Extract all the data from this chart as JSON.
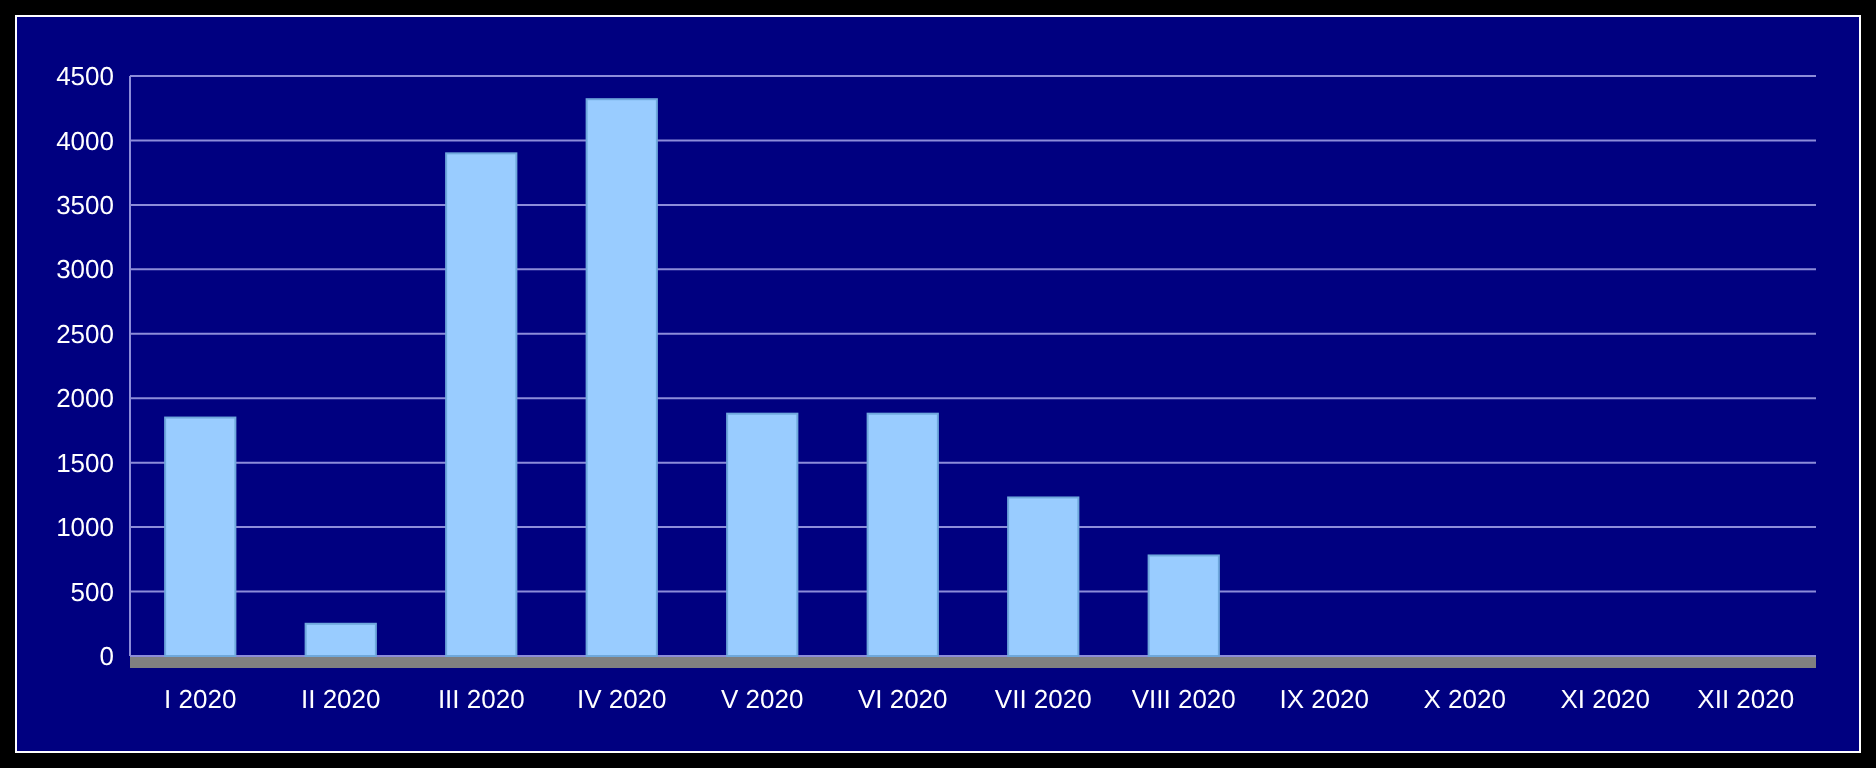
{
  "chart_data": {
    "type": "bar",
    "categories": [
      "I 2020",
      "II 2020",
      "III 2020",
      "IV 2020",
      "V 2020",
      "VI 2020",
      "VII 2020",
      "VIII 2020",
      "IX 2020",
      "X 2020",
      "XI 2020",
      "XII 2020"
    ],
    "values": [
      1850,
      250,
      3900,
      4320,
      1880,
      1880,
      1230,
      780,
      null,
      null,
      null,
      null
    ],
    "color": "#99ccff",
    "ylim": [
      0,
      4500
    ],
    "yticks": [
      0,
      500,
      1000,
      1500,
      2000,
      2500,
      3000,
      3500,
      4000,
      4500
    ],
    "grid": "y"
  }
}
